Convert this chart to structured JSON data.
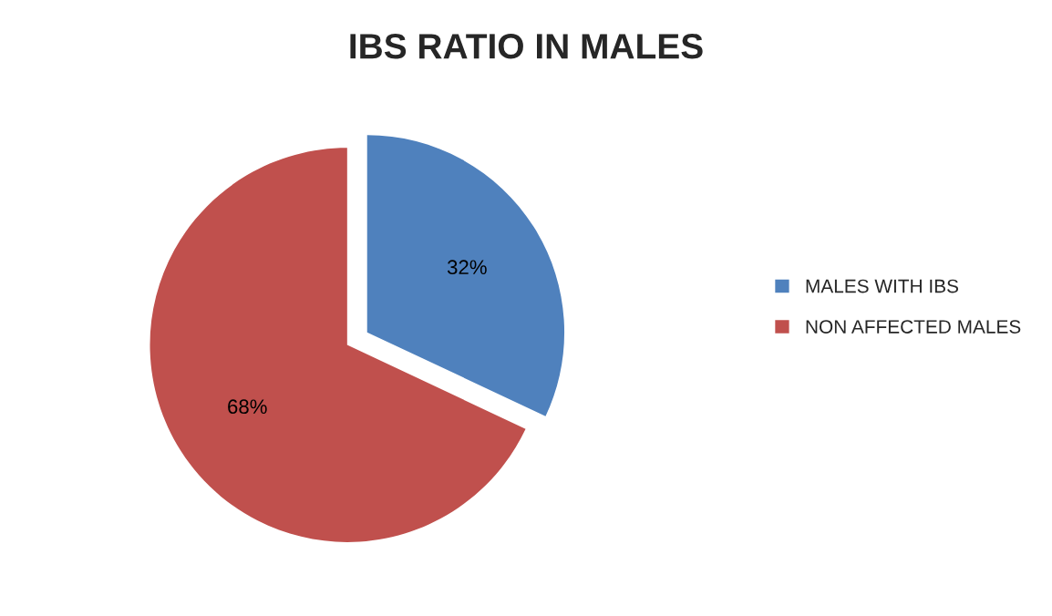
{
  "chart_data": {
    "type": "pie",
    "title": "IBS RATIO IN MALES",
    "categories": [
      "MALES WITH IBS",
      "NON AFFECTED MALES"
    ],
    "values": [
      32,
      68
    ],
    "colors": [
      "#4f81bd",
      "#c0504d"
    ],
    "value_labels": [
      "32%",
      "68%"
    ],
    "legend": "right"
  }
}
